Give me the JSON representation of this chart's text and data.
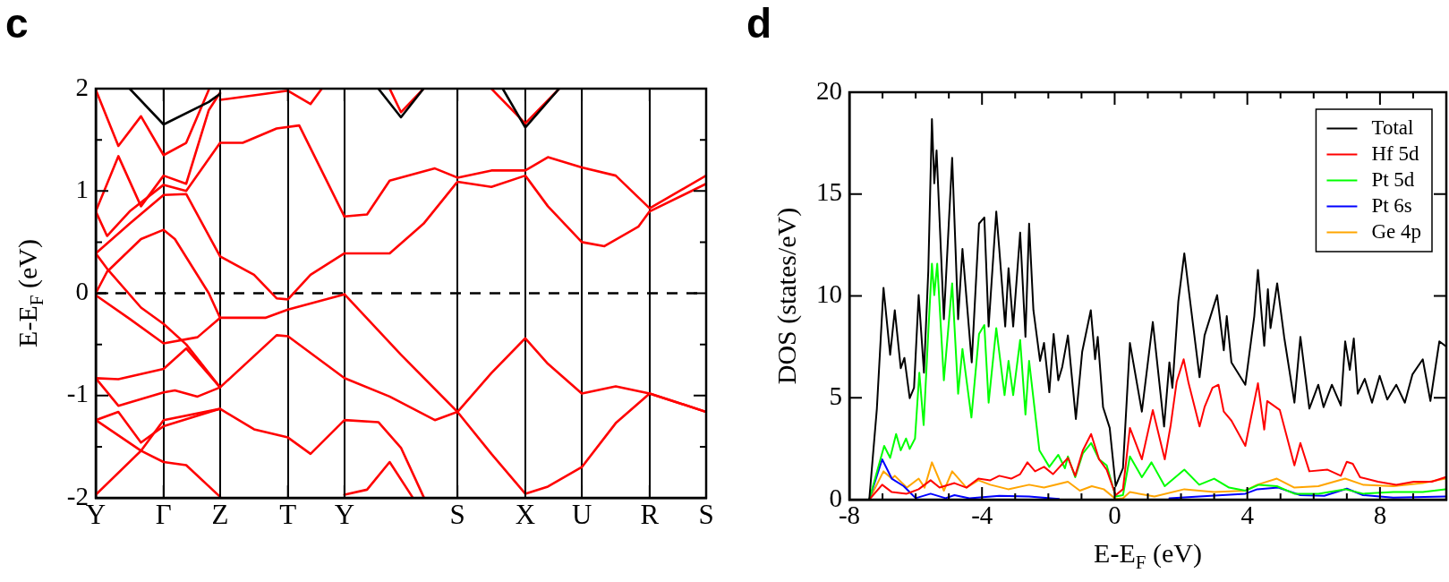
{
  "chart_data": [
    {
      "type": "line",
      "title": "c",
      "ylabel": "E-E$_{F}$ (eV)",
      "categories": [
        "Y",
        null,
        null,
        null,
        null,
        null,
        "Γ",
        null,
        null,
        null,
        null,
        "Z",
        null,
        null,
        null,
        null,
        null,
        "T",
        null,
        null,
        null,
        null,
        "Y",
        null,
        null,
        null,
        null,
        null,
        null,
        null,
        null,
        null,
        "S",
        null,
        null,
        null,
        null,
        null,
        "X",
        null,
        null,
        null,
        null,
        "U",
        null,
        null,
        null,
        null,
        null,
        "R",
        null,
        null,
        null,
        null,
        "S"
      ],
      "ylim": [
        -2,
        2
      ],
      "yticks": [
        -2,
        {
          "value": -1.5,
          "label": null
        },
        -1,
        {
          "value": -0.5,
          "label": null
        },
        0,
        {
          "value": 0.5,
          "label": null
        },
        1,
        {
          "value": 1.5,
          "label": null
        },
        2
      ],
      "grid": "x",
      "ref_lines": [
        {
          "axis": "y",
          "value": 0,
          "line_style": "dashed",
          "color": "#000000"
        }
      ],
      "series": [
        {
          "color": "#000000",
          "values": [
            null,
            null,
            null,
            2.0,
            null,
            null,
            1.65,
            null,
            null,
            null,
            1.87,
            1.95,
            null,
            null,
            null,
            null,
            null,
            null,
            null,
            null,
            null,
            null,
            null,
            null,
            null,
            null,
            null,
            null,
            null,
            null,
            null,
            null,
            null,
            null,
            null,
            null,
            null,
            null,
            null,
            null,
            null,
            null,
            null,
            null,
            null,
            null,
            null,
            null,
            null,
            null,
            null,
            null,
            null,
            null,
            null
          ]
        },
        {
          "color": "#000000",
          "values": [
            null,
            null,
            null,
            null,
            null,
            null,
            null,
            null,
            null,
            null,
            null,
            null,
            null,
            null,
            null,
            null,
            null,
            null,
            null,
            null,
            null,
            null,
            null,
            null,
            null,
            2.0,
            null,
            1.72,
            null,
            2.0,
            null,
            null,
            null,
            null,
            null,
            null,
            null,
            null,
            null,
            null,
            null,
            null,
            null,
            null,
            null,
            null,
            null,
            null,
            null,
            null,
            null,
            null,
            null,
            null,
            null
          ]
        },
        {
          "color": "#000000",
          "values": [
            null,
            null,
            null,
            null,
            null,
            null,
            null,
            null,
            null,
            null,
            null,
            null,
            null,
            null,
            null,
            null,
            null,
            null,
            null,
            null,
            null,
            null,
            null,
            null,
            null,
            null,
            null,
            null,
            null,
            null,
            null,
            null,
            null,
            null,
            null,
            null,
            2.0,
            null,
            1.62,
            null,
            null,
            2.0,
            null,
            null,
            null,
            null,
            null,
            null,
            null,
            null,
            null,
            null,
            null,
            null,
            null
          ]
        },
        {
          "color": "#ff0000",
          "values": [
            -1.97,
            null,
            null,
            null,
            -1.54,
            null,
            -1.24,
            null,
            null,
            null,
            null,
            -1.13,
            null,
            null,
            -1.33,
            null,
            null,
            -1.41,
            null,
            -1.57,
            null,
            null,
            -1.24,
            null,
            null,
            -1.26,
            null,
            -1.51,
            null,
            -1.99,
            null,
            null,
            null,
            null,
            null,
            null,
            null,
            null,
            null,
            null,
            null,
            null,
            null,
            null,
            null,
            null,
            null,
            null,
            null,
            null,
            null,
            null,
            null,
            null,
            null
          ]
        },
        {
          "color": "#ff0000",
          "values": [
            -1.24,
            null,
            -1.16,
            null,
            -1.46,
            null,
            -1.3,
            null,
            null,
            null,
            null,
            -1.13,
            null,
            null,
            null,
            null,
            null,
            null,
            null,
            null,
            null,
            null,
            null,
            null,
            null,
            null,
            null,
            null,
            null,
            null,
            null,
            null,
            null,
            null,
            null,
            null,
            null,
            null,
            null,
            null,
            null,
            null,
            null,
            null,
            null,
            null,
            null,
            null,
            null,
            null,
            null,
            null,
            null,
            null,
            null
          ]
        },
        {
          "color": "#ff0000",
          "values": [
            -1.24,
            null,
            null,
            null,
            -1.54,
            null,
            -1.65,
            null,
            -1.68,
            null,
            null,
            -1.99,
            null,
            null,
            null,
            null,
            null,
            null,
            null,
            null,
            null,
            null,
            null,
            null,
            null,
            null,
            null,
            null,
            null,
            null,
            null,
            null,
            null,
            null,
            null,
            null,
            null,
            null,
            null,
            null,
            null,
            null,
            null,
            null,
            null,
            null,
            null,
            null,
            null,
            null,
            null,
            null,
            null,
            null,
            null
          ]
        },
        {
          "color": "#ff0000",
          "values": [
            -0.83,
            null,
            -0.84,
            null,
            null,
            null,
            -0.74,
            null,
            -0.54,
            null,
            null,
            -0.92,
            null,
            null,
            null,
            null,
            -0.41,
            -0.42,
            null,
            null,
            null,
            null,
            -0.83,
            null,
            null,
            null,
            -1.01,
            null,
            null,
            null,
            -1.24,
            null,
            -1.16,
            null,
            null,
            null,
            null,
            null,
            null,
            null,
            null,
            null,
            null,
            null,
            null,
            null,
            null,
            null,
            null,
            null,
            null,
            null,
            null,
            null,
            null
          ]
        },
        {
          "color": "#ff0000",
          "values": [
            -0.83,
            null,
            -1.1,
            null,
            null,
            null,
            -0.97,
            -0.95,
            null,
            -1.01,
            null,
            -0.92,
            null,
            null,
            null,
            null,
            null,
            null,
            null,
            null,
            null,
            null,
            null,
            null,
            null,
            null,
            null,
            null,
            null,
            null,
            null,
            null,
            null,
            null,
            null,
            null,
            null,
            null,
            null,
            null,
            null,
            null,
            null,
            null,
            null,
            null,
            null,
            null,
            null,
            null,
            null,
            null,
            null,
            null,
            null
          ]
        },
        {
          "color": "#ff0000",
          "values": [
            -0.02,
            null,
            null,
            -0.25,
            null,
            null,
            -0.49,
            null,
            null,
            -0.43,
            null,
            -0.24,
            null,
            null,
            null,
            -0.24,
            null,
            -0.16,
            null,
            null,
            null,
            null,
            -0.01,
            null,
            null,
            null,
            null,
            null,
            null,
            null,
            null,
            null,
            null,
            null,
            null,
            null,
            null,
            null,
            null,
            null,
            null,
            null,
            null,
            null,
            null,
            null,
            null,
            null,
            null,
            null,
            null,
            null,
            null,
            null,
            null
          ]
        },
        {
          "color": "#ff0000",
          "values": [
            0.39,
            0.24,
            null,
            null,
            -0.14,
            null,
            -0.3,
            null,
            -0.5,
            null,
            null,
            -0.92,
            null,
            null,
            null,
            null,
            null,
            null,
            null,
            null,
            null,
            null,
            null,
            null,
            null,
            null,
            null,
            null,
            null,
            null,
            null,
            null,
            null,
            null,
            null,
            null,
            null,
            null,
            null,
            null,
            null,
            null,
            null,
            null,
            null,
            null,
            null,
            null,
            null,
            null,
            null,
            null,
            null,
            null,
            null
          ]
        },
        {
          "color": "#ff0000",
          "values": [
            0,
            0.21,
            null,
            null,
            0.53,
            null,
            0.62,
            0.53,
            null,
            null,
            0,
            -0.24,
            null,
            null,
            null,
            null,
            null,
            null,
            null,
            null,
            null,
            null,
            null,
            null,
            null,
            null,
            null,
            null,
            null,
            null,
            null,
            null,
            null,
            null,
            null,
            null,
            null,
            null,
            null,
            null,
            null,
            null,
            null,
            null,
            null,
            null,
            null,
            null,
            null,
            null,
            null,
            null,
            null,
            null,
            null
          ]
        },
        {
          "color": "#ff0000",
          "values": [
            0.39,
            null,
            null,
            0.68,
            null,
            null,
            0.96,
            null,
            0.97,
            null,
            null,
            0.36,
            null,
            null,
            0.18,
            null,
            -0.05,
            -0.06,
            null,
            0.18,
            null,
            null,
            0.39,
            null,
            null,
            null,
            null,
            null,
            null,
            null,
            null,
            null,
            null,
            null,
            null,
            null,
            null,
            null,
            null,
            null,
            null,
            null,
            null,
            null,
            null,
            null,
            null,
            null,
            null,
            null,
            null,
            null,
            null,
            null,
            null
          ]
        },
        {
          "color": "#ff0000",
          "values": [
            0.8,
            0.56,
            null,
            0.8,
            null,
            null,
            1.06,
            null,
            1.0,
            null,
            null,
            1.47,
            null,
            1.47,
            null,
            null,
            1.61,
            null,
            1.64,
            null,
            null,
            null,
            0.75,
            null,
            null,
            null,
            null,
            null,
            null,
            null,
            null,
            null,
            null,
            null,
            null,
            null,
            null,
            null,
            null,
            null,
            null,
            null,
            null,
            null,
            null,
            null,
            null,
            null,
            null,
            null,
            null,
            null,
            null,
            null,
            null
          ]
        },
        {
          "color": "#ff0000",
          "values": [
            0.8,
            null,
            1.34,
            null,
            0.85,
            null,
            1.15,
            null,
            1.07,
            null,
            1.79,
            1.96,
            null,
            null,
            null,
            null,
            null,
            null,
            null,
            null,
            null,
            null,
            null,
            null,
            null,
            null,
            null,
            null,
            null,
            null,
            null,
            null,
            null,
            null,
            null,
            null,
            null,
            null,
            null,
            null,
            null,
            null,
            null,
            null,
            null,
            null,
            null,
            null,
            null,
            null,
            null,
            null,
            null,
            null,
            null
          ]
        },
        {
          "color": "#ff0000",
          "values": [
            1.99,
            null,
            1.44,
            null,
            1.73,
            null,
            1.35,
            null,
            1.47,
            null,
            1.99,
            null,
            null,
            null,
            null,
            null,
            null,
            null,
            null,
            null,
            null,
            null,
            null,
            null,
            null,
            null,
            null,
            null,
            null,
            null,
            null,
            null,
            null,
            null,
            null,
            null,
            null,
            null,
            null,
            null,
            null,
            null,
            null,
            null,
            null,
            null,
            null,
            null,
            null,
            null,
            null,
            null,
            null,
            null,
            null
          ]
        },
        {
          "color": "#ff0000",
          "values": [
            null,
            null,
            null,
            null,
            null,
            null,
            null,
            null,
            null,
            null,
            null,
            1.89,
            null,
            null,
            null,
            1.95,
            null,
            1.98,
            null,
            1.85,
            2.0,
            null,
            null,
            null,
            null,
            null,
            null,
            null,
            null,
            null,
            null,
            null,
            null,
            null,
            null,
            null,
            null,
            null,
            null,
            null,
            null,
            null,
            null,
            null,
            null,
            null,
            null,
            null,
            null,
            null,
            null,
            null,
            null,
            null,
            null
          ]
        },
        {
          "color": "#ff0000",
          "values": [
            null,
            null,
            null,
            null,
            null,
            null,
            null,
            null,
            null,
            null,
            null,
            null,
            null,
            null,
            null,
            null,
            null,
            null,
            null,
            null,
            null,
            null,
            0.75,
            null,
            0.77,
            null,
            1.1,
            null,
            null,
            null,
            1.22,
            null,
            1.13,
            null,
            null,
            1.2,
            null,
            null,
            1.2,
            null,
            1.33,
            null,
            null,
            1.23,
            null,
            null,
            1.15,
            null,
            null,
            0.83,
            null,
            null,
            null,
            null,
            1.15
          ]
        },
        {
          "color": "#ff0000",
          "values": [
            null,
            null,
            null,
            null,
            null,
            null,
            null,
            null,
            null,
            null,
            null,
            null,
            null,
            null,
            null,
            null,
            null,
            null,
            null,
            null,
            null,
            null,
            0.39,
            null,
            null,
            null,
            0.39,
            null,
            null,
            0.68,
            null,
            null,
            1.09,
            null,
            null,
            1.04,
            null,
            null,
            1.15,
            null,
            0.85,
            null,
            null,
            0.5,
            null,
            0.46,
            null,
            null,
            0.65,
            0.8,
            null,
            null,
            null,
            null,
            1.07
          ]
        },
        {
          "color": "#ff0000",
          "values": [
            null,
            null,
            null,
            null,
            null,
            null,
            null,
            null,
            null,
            null,
            null,
            null,
            null,
            null,
            null,
            null,
            null,
            null,
            null,
            null,
            null,
            null,
            -0.01,
            null,
            null,
            null,
            null,
            -0.6,
            null,
            null,
            null,
            null,
            -1.16,
            null,
            null,
            -1.57,
            null,
            null,
            -1.96,
            null,
            -1.89,
            null,
            null,
            -1.7,
            null,
            null,
            -1.27,
            null,
            null,
            -0.98,
            null,
            null,
            null,
            null,
            -1.16
          ]
        },
        {
          "color": "#ff0000",
          "values": [
            null,
            null,
            null,
            null,
            null,
            null,
            null,
            null,
            null,
            null,
            null,
            null,
            null,
            null,
            null,
            null,
            null,
            null,
            null,
            null,
            null,
            null,
            null,
            null,
            null,
            null,
            null,
            null,
            null,
            null,
            null,
            null,
            -1.16,
            null,
            null,
            -0.78,
            null,
            null,
            -0.44,
            null,
            -0.69,
            null,
            null,
            -0.98,
            null,
            null,
            -0.91,
            null,
            null,
            -0.98,
            null,
            null,
            null,
            null,
            -1.16
          ]
        },
        {
          "color": "#ff0000",
          "values": [
            null,
            null,
            null,
            null,
            null,
            null,
            null,
            null,
            null,
            null,
            null,
            null,
            null,
            null,
            null,
            null,
            null,
            null,
            null,
            null,
            null,
            null,
            -1.97,
            null,
            -1.92,
            null,
            -1.65,
            null,
            -1.99,
            null,
            null,
            null,
            null,
            null,
            null,
            null,
            null,
            null,
            null,
            null,
            null,
            null,
            null,
            null,
            null,
            null,
            null,
            null,
            null,
            null,
            null,
            null,
            null,
            null,
            null
          ]
        },
        {
          "color": "#ff0000",
          "values": [
            null,
            null,
            null,
            null,
            null,
            null,
            null,
            null,
            null,
            null,
            null,
            null,
            null,
            null,
            null,
            null,
            null,
            null,
            null,
            null,
            null,
            null,
            null,
            null,
            null,
            null,
            2.0,
            1.77,
            null,
            2.0,
            null,
            null,
            null,
            null,
            null,
            null,
            null,
            null,
            null,
            null,
            null,
            null,
            null,
            null,
            null,
            null,
            null,
            null,
            null,
            null,
            null,
            null,
            null,
            null,
            null
          ]
        },
        {
          "color": "#ff0000",
          "values": [
            null,
            null,
            null,
            null,
            null,
            null,
            null,
            null,
            null,
            null,
            null,
            null,
            null,
            null,
            null,
            null,
            null,
            null,
            null,
            null,
            null,
            null,
            null,
            null,
            null,
            null,
            null,
            null,
            null,
            null,
            null,
            null,
            null,
            null,
            null,
            2.0,
            null,
            null,
            1.66,
            null,
            null,
            2.0,
            null,
            null,
            null,
            null,
            null,
            null,
            null,
            null,
            null,
            null,
            null,
            null,
            null
          ]
        }
      ]
    },
    {
      "type": "line",
      "title": "d",
      "xlabel": "E-E$_{F}$ (eV)",
      "ylabel": "DOS (states/eV)",
      "xlim": [
        -8,
        10
      ],
      "xticks": [
        -8,
        {
          "value": -7,
          "label": null
        },
        {
          "value": -6,
          "label": null
        },
        {
          "value": -5,
          "label": null
        },
        -4,
        {
          "value": -3,
          "label": null
        },
        {
          "value": -2,
          "label": null
        },
        {
          "value": -1,
          "label": null
        },
        0,
        {
          "value": 1,
          "label": null
        },
        {
          "value": 2,
          "label": null
        },
        {
          "value": 3,
          "label": null
        },
        4,
        {
          "value": 5,
          "label": null
        },
        {
          "value": 6,
          "label": null
        },
        {
          "value": 7,
          "label": null
        },
        8,
        {
          "value": 9,
          "label": null
        }
      ],
      "ylim": [
        0,
        20
      ],
      "yticks": [
        0,
        5,
        10,
        15,
        20
      ],
      "legend": "top right",
      "series": [
        {
          "name": "Total",
          "color": "#000000",
          "x": [
            -7.4,
            -7.17,
            -6.97,
            -6.77,
            -6.63,
            -6.45,
            -6.34,
            -6.18,
            -6.05,
            -5.91,
            -5.75,
            -5.62,
            -5.51,
            -5.44,
            -5.37,
            -5.15,
            -4.9,
            -4.72,
            -4.59,
            -4.31,
            -4.09,
            -3.93,
            -3.8,
            -3.57,
            -3.48,
            -3.3,
            -3.2,
            -3.06,
            -2.85,
            -2.69,
            -2.58,
            -2.45,
            -2.25,
            -2.13,
            -1.97,
            -1.84,
            -1.7,
            -1.58,
            -1.41,
            -1.17,
            -0.98,
            -0.72,
            -0.59,
            -0.51,
            -0.35,
            -0.15,
            0.03,
            0.25,
            0.46,
            0.82,
            1.15,
            1.49,
            1.65,
            1.74,
            1.92,
            2.1,
            2.23,
            2.56,
            2.71,
            3.09,
            3.29,
            3.38,
            3.52,
            3.94,
            4.21,
            4.32,
            4.51,
            4.62,
            4.7,
            4.9,
            5.11,
            5.42,
            5.6,
            5.87,
            6.14,
            6.3,
            6.55,
            6.82,
            6.95,
            7.09,
            7.21,
            7.33,
            7.54,
            7.76,
            7.99,
            8.22,
            8.49,
            8.75,
            8.98,
            9.29,
            9.52,
            9.79,
            9.97
          ],
          "values": [
            0,
            4.47,
            10.4,
            7.11,
            9.3,
            6.45,
            6.96,
            4.98,
            5.49,
            10.04,
            6.23,
            11.21,
            18.68,
            15.53,
            17.14,
            8.86,
            16.78,
            8.86,
            12.31,
            6.74,
            13.55,
            13.85,
            8.5,
            14.14,
            12.31,
            8.5,
            11.36,
            8.5,
            13.11,
            7.99,
            13.55,
            9.3,
            6.81,
            7.69,
            5.27,
            8.13,
            5.86,
            6.52,
            8.06,
            3.96,
            7.25,
            9.3,
            6.89,
            7.99,
            4.54,
            3.52,
            0.66,
            1.54,
            7.69,
            4.32,
            8.72,
            3.59,
            6.74,
            5.49,
            9.74,
            12.09,
            10.33,
            6.01,
            8.06,
            10.04,
            7.33,
            9.01,
            6.74,
            5.64,
            9.01,
            11.28,
            7.55,
            10.33,
            8.42,
            10.62,
            7.99,
            4.76,
            7.99,
            4.47,
            5.64,
            4.54,
            5.64,
            4.62,
            7.77,
            6.37,
            7.91,
            5.2,
            5.93,
            4.76,
            6.08,
            4.91,
            5.64,
            4.76,
            6.15,
            6.89,
            4.84,
            7.77,
            7.55
          ]
        },
        {
          "name": "Hf 5d",
          "color": "#ff0000",
          "x": [
            -7.4,
            -7.01,
            -6.72,
            -6.27,
            -5.91,
            -5.55,
            -5.28,
            -4.83,
            -4.47,
            -4.11,
            -3.75,
            -3.48,
            -3.12,
            -2.85,
            -2.63,
            -2.4,
            -2.13,
            -1.86,
            -1.41,
            -1.19,
            -0.96,
            -0.71,
            -0.47,
            -0.24,
            0.03,
            0.25,
            0.46,
            0.82,
            1.15,
            1.51,
            1.69,
            1.87,
            2.08,
            2.23,
            2.56,
            2.71,
            2.95,
            3.13,
            3.29,
            3.52,
            3.94,
            4.32,
            4.51,
            4.6,
            4.98,
            5.42,
            5.6,
            5.87,
            6.42,
            6.82,
            7.0,
            7.18,
            7.4,
            7.94,
            8.49,
            9.02,
            9.56,
            9.97
          ],
          "values": [
            0,
            0.73,
            0.37,
            0.29,
            0.51,
            0.95,
            0.59,
            0.81,
            0.59,
            1.03,
            0.95,
            1.17,
            1.03,
            1.25,
            1.83,
            1.39,
            1.61,
            1.25,
            2.05,
            1.17,
            2.42,
            3.22,
            1.98,
            1.47,
            0.22,
            0.51,
            3.52,
            1.98,
            4.4,
            1.98,
            3.66,
            5.79,
            6.89,
            5.71,
            3.59,
            4.54,
            5.49,
            5.64,
            4.32,
            3.88,
            2.64,
            5.71,
            3.44,
            4.84,
            4.4,
            1.68,
            2.78,
            1.39,
            1.47,
            1.17,
            1.86,
            1.76,
            1.1,
            0.88,
            0.73,
            0.88,
            0.88,
            1.1
          ]
        },
        {
          "name": "Pt 5d",
          "color": "#00ff00",
          "x": [
            -7.4,
            -6.95,
            -6.77,
            -6.59,
            -6.45,
            -6.29,
            -6.18,
            -6.02,
            -5.89,
            -5.76,
            -5.62,
            -5.51,
            -5.44,
            -5.35,
            -5.15,
            -4.9,
            -4.72,
            -4.59,
            -4.32,
            -4.09,
            -3.93,
            -3.8,
            -3.57,
            -3.32,
            -3.2,
            -3.06,
            -2.85,
            -2.69,
            -2.58,
            -2.27,
            -1.97,
            -1.7,
            -1.5,
            -1.41,
            -1.19,
            -0.96,
            -0.71,
            -0.47,
            -0.24,
            0.03,
            0.25,
            0.46,
            0.82,
            1.11,
            1.51,
            2.1,
            2.55,
            3.0,
            3.45,
            3.94,
            4.35,
            4.89,
            5.42,
            6.14,
            6.95,
            7.49,
            8.4,
            9.29,
            9.97
          ],
          "values": [
            0,
            2.64,
            2.05,
            3.22,
            2.42,
            3.0,
            2.49,
            3.0,
            6.23,
            3.66,
            8.21,
            11.58,
            10.04,
            11.58,
            5.86,
            10.62,
            5.2,
            7.4,
            4.03,
            8.13,
            8.57,
            4.76,
            8.42,
            5.13,
            6.81,
            5.13,
            7.84,
            4.18,
            6.81,
            2.42,
            1.61,
            2.2,
            1.54,
            2.12,
            1.1,
            2.27,
            2.78,
            1.98,
            1.68,
            0.15,
            0.22,
            2.12,
            1.1,
            1.83,
            0.66,
            1.47,
            0.73,
            1.03,
            0.59,
            0.44,
            0.73,
            0.66,
            0.29,
            0.29,
            0.51,
            0.29,
            0.37,
            0.37,
            0.51
          ]
        },
        {
          "name": "Pt 6s",
          "color": "#0000ff",
          "x": [
            -7.4,
            -7.01,
            -6.72,
            -6.36,
            -6.0,
            -5.55,
            -5.1,
            -4.83,
            -4.38,
            -3.48,
            -2.58,
            -1.68,
            0.03,
            1.65,
            2.55,
            3.94,
            4.3,
            4.93,
            5.6,
            6.32,
            7.0,
            7.49,
            8.4,
            9.97
          ],
          "values": [
            0,
            1.98,
            1.03,
            0.66,
            0.07,
            0.29,
            0.07,
            0.22,
            0.07,
            0.19,
            0.15,
            0.03,
            null,
            0.07,
            0.15,
            0.29,
            0.51,
            0.59,
            0.22,
            0.19,
            0.54,
            0.22,
            0.1,
            0.15
          ]
        },
        {
          "name": "Ge 4p",
          "color": "#ffa500",
          "x": [
            -7.4,
            -6.97,
            -6.72,
            -6.63,
            -6.27,
            -5.91,
            -5.73,
            -5.51,
            -5.15,
            -4.9,
            -4.47,
            -4.11,
            -3.75,
            -3.21,
            -2.58,
            -2.13,
            -1.41,
            -1.05,
            -0.69,
            -0.33,
            0.03,
            0.25,
            0.46,
            1.2,
            2.1,
            3.0,
            3.94,
            4.3,
            4.89,
            5.42,
            6.14,
            6.95,
            7.49,
            8.4,
            9.29,
            9.97
          ],
          "values": [
            0,
            1.39,
            1.03,
            1.17,
            0.59,
            1.03,
            0.59,
            1.83,
            0.44,
            1.39,
            0.59,
            0.95,
            0.73,
            0.51,
            0.73,
            0.59,
            0.88,
            0.44,
            0.66,
            0.51,
            0.03,
            0.07,
            0.37,
            0.15,
            0.51,
            0.37,
            0.44,
            0.73,
            1.03,
            0.59,
            0.66,
            1.03,
            0.73,
            0.66,
            0.81,
            1.03
          ]
        }
      ]
    }
  ]
}
